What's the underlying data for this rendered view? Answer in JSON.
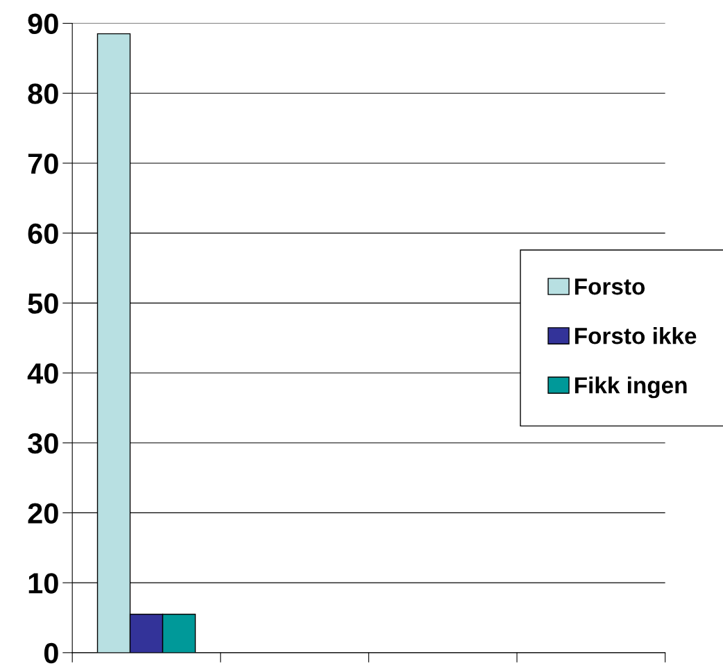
{
  "chart_data": {
    "type": "bar",
    "categories": [
      null,
      null,
      null,
      null
    ],
    "series": [
      {
        "name": "Forsto",
        "color": "#b8e0e2",
        "values": [
          88.5,
          null,
          null,
          null
        ]
      },
      {
        "name": "Forsto ikke",
        "color": "#333399",
        "values": [
          5.5,
          null,
          null,
          null
        ]
      },
      {
        "name": "Fikk ingen",
        "color": "#009999",
        "values": [
          5.5,
          null,
          null,
          null
        ]
      }
    ],
    "ylim": [
      0,
      90
    ],
    "yticks": [
      0,
      10,
      20,
      30,
      40,
      50,
      60,
      70,
      80,
      90
    ],
    "grid": "y",
    "legend": "right"
  }
}
